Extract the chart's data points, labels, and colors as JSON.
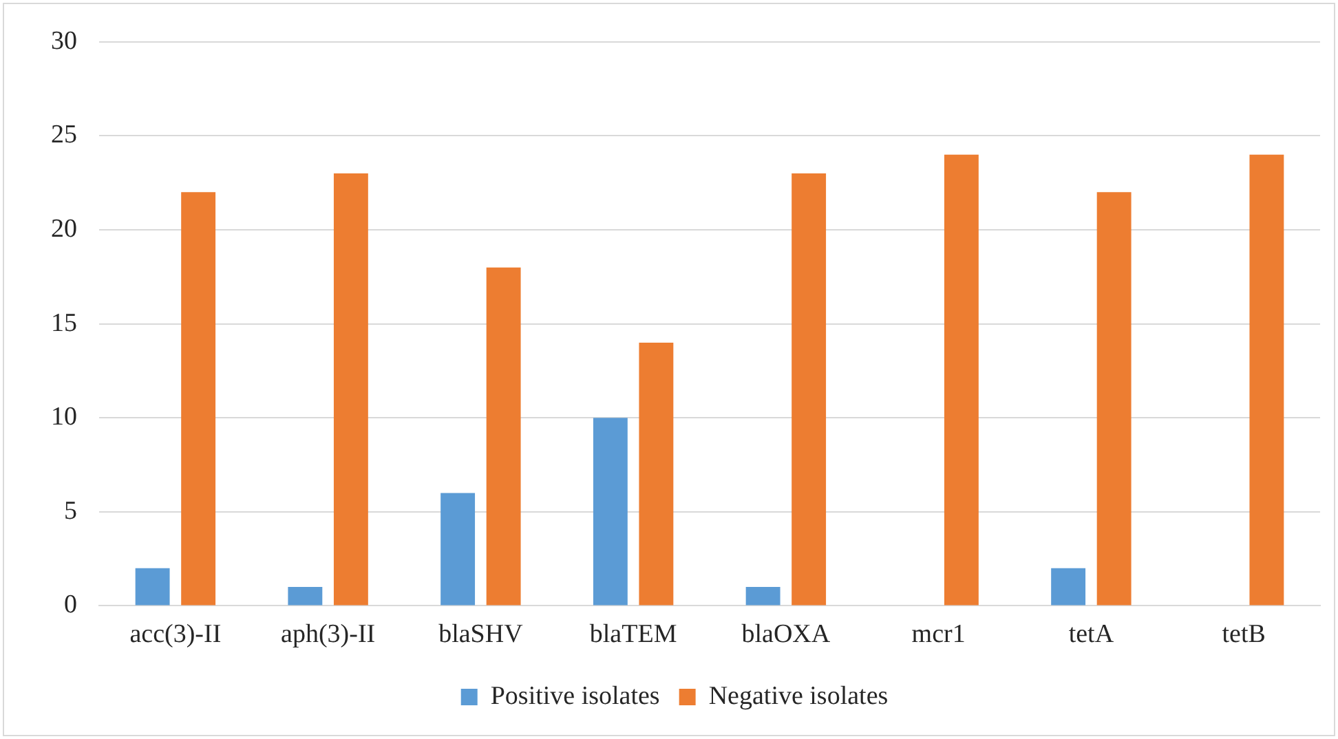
{
  "chart_data": {
    "type": "bar",
    "categories": [
      "acc(3)-II",
      "aph(3)-II",
      "blaSHV",
      "blaTEM",
      "blaOXA",
      "mcr1",
      "tetA",
      "tetB"
    ],
    "series": [
      {
        "name": "Positive isolates",
        "color": "#5b9bd5",
        "values": [
          2,
          1,
          6,
          10,
          1,
          0,
          2,
          0
        ]
      },
      {
        "name": "Negative isolates",
        "color": "#ed7d31",
        "values": [
          22,
          23,
          18,
          14,
          23,
          24,
          22,
          24
        ]
      }
    ],
    "ylim": [
      0,
      30
    ],
    "yticks": [
      0,
      5,
      10,
      15,
      20,
      25,
      30
    ],
    "grid": "y",
    "legend": "bottom"
  }
}
